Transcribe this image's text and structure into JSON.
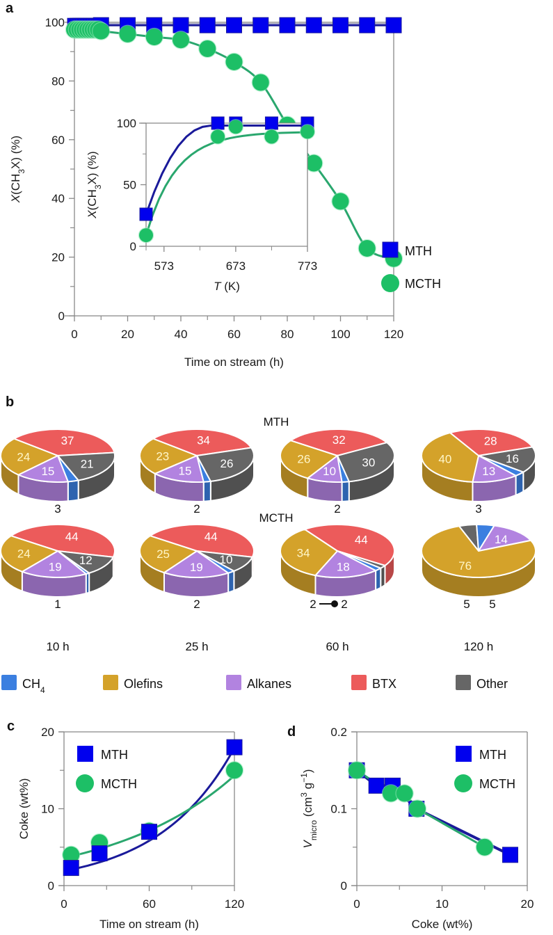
{
  "figure": {
    "panel_letters": [
      "a",
      "b",
      "c",
      "d"
    ]
  },
  "colors": {
    "MTH": "#0000ee",
    "MTH_line": "#1a1a9a",
    "MCTH": "#1dbf66",
    "MCTH_line": "#2aa76e",
    "CH4": "#3b7fe0",
    "Olefins": "#d4a22a",
    "Alkanes": "#b283e0",
    "BTX": "#ec5b5b",
    "Other": "#666666",
    "axis": "#888888"
  },
  "chart_data": [
    {
      "id": "a",
      "type": "scatter",
      "title": "",
      "xlabel": "Time on stream (h)",
      "ylabel": "X(CH3X) (%)",
      "ylabel_parts": {
        "italic": "X",
        "rest": "(CH",
        "sub": "3",
        "tail": "X) (%)"
      },
      "xlim": [
        0,
        120
      ],
      "ylim": [
        0,
        100
      ],
      "xticks": [
        0,
        20,
        40,
        60,
        80,
        100,
        120
      ],
      "yticks": [
        0,
        20,
        40,
        60,
        80,
        100
      ],
      "grid": false,
      "legend": {
        "position": "bottom-right",
        "entries": [
          "MTH",
          "MCTH"
        ]
      },
      "series": [
        {
          "name": "MTH",
          "marker": "square",
          "x": [
            0,
            1,
            2,
            3,
            4,
            5,
            6,
            7,
            8,
            9,
            10,
            20,
            30,
            40,
            50,
            60,
            70,
            80,
            90,
            100,
            110,
            120
          ],
          "y": [
            99,
            99,
            99,
            99,
            99,
            99,
            99,
            99,
            99,
            99,
            99,
            99,
            99,
            99,
            99,
            99,
            99,
            99,
            99,
            99,
            99,
            99
          ]
        },
        {
          "name": "MCTH",
          "marker": "circle",
          "x": [
            0,
            1,
            2,
            3,
            4,
            5,
            6,
            7,
            8,
            9,
            10,
            20,
            30,
            40,
            50,
            60,
            70,
            80,
            90,
            100,
            110,
            120
          ],
          "y": [
            97.5,
            97.5,
            97.5,
            97.5,
            97.5,
            97.5,
            97.5,
            97.5,
            97.5,
            97.5,
            97,
            96,
            95,
            94,
            91,
            86.5,
            79.5,
            65,
            52,
            39,
            23,
            19.5
          ]
        }
      ],
      "inset": {
        "type": "scatter",
        "xlabel": "T (K)",
        "ylabel": "X(CH3X) (%)",
        "xlim": [
          548,
          773
        ],
        "ylim": [
          0,
          100
        ],
        "xticks": [
          573,
          673,
          773
        ],
        "minor_xticks": [
          623,
          723
        ],
        "yticks": [
          0,
          50,
          100
        ],
        "series": [
          {
            "name": "MTH",
            "x": [
              548,
              648,
              673,
              723,
              773
            ],
            "y": [
              26,
              100,
              100,
              100,
              100
            ]
          },
          {
            "name": "MCTH",
            "x": [
              548,
              648,
              673,
              723,
              773
            ],
            "y": [
              9,
              89,
              97,
              89,
              93
            ]
          }
        ]
      }
    },
    {
      "id": "b",
      "type": "pie",
      "row_titles": [
        "MTH",
        "MCTH"
      ],
      "time_labels": [
        "10 h",
        "25 h",
        "60 h",
        "120 h"
      ],
      "categories": [
        "CH4",
        "Olefins",
        "Alkanes",
        "BTX",
        "Other"
      ],
      "legend": {
        "position": "bottom",
        "entries": [
          {
            "key": "CH4",
            "label": "CH",
            "sub": "4"
          },
          {
            "key": "Olefins",
            "label": "Olefins"
          },
          {
            "key": "Alkanes",
            "label": "Alkanes"
          },
          {
            "key": "BTX",
            "label": "BTX"
          },
          {
            "key": "Other",
            "label": "Other"
          }
        ]
      },
      "pies": [
        {
          "row": "MTH",
          "time": "10 h",
          "CH4": 3,
          "Olefins": 24,
          "Alkanes": 15,
          "BTX": 37,
          "Other": 21
        },
        {
          "row": "MTH",
          "time": "25 h",
          "CH4": 2,
          "Olefins": 23,
          "Alkanes": 15,
          "BTX": 34,
          "Other": 26
        },
        {
          "row": "MTH",
          "time": "60 h",
          "CH4": 2,
          "Olefins": 26,
          "Alkanes": 10,
          "BTX": 32,
          "Other": 30
        },
        {
          "row": "MTH",
          "time": "120 h",
          "CH4": 3,
          "Olefins": 40,
          "Alkanes": 13,
          "BTX": 28,
          "Other": 16
        },
        {
          "row": "MCTH",
          "time": "10 h",
          "CH4": 1,
          "Olefins": 24,
          "Alkanes": 19,
          "BTX": 44,
          "Other": 12
        },
        {
          "row": "MCTH",
          "time": "25 h",
          "CH4": 2,
          "Olefins": 25,
          "Alkanes": 19,
          "BTX": 44,
          "Other": 10
        },
        {
          "row": "MCTH",
          "time": "60 h",
          "CH4": 2,
          "Olefins": 34,
          "Alkanes": 18,
          "BTX": 44,
          "Other": 2
        },
        {
          "row": "MCTH",
          "time": "120 h",
          "CH4": 5,
          "Olefins": 76,
          "Alkanes": 14,
          "BTX": 0,
          "Other": 5
        }
      ],
      "outside_labels": [
        {
          "pie": 0,
          "text": "3"
        },
        {
          "pie": 1,
          "text": "2"
        },
        {
          "pie": 2,
          "text": "2"
        },
        {
          "pie": 3,
          "text": "3"
        },
        {
          "pie": 4,
          "text": "1"
        },
        {
          "pie": 5,
          "text": "2"
        },
        {
          "pie": 6,
          "text": "2",
          "text2": "2",
          "connector": true
        },
        {
          "pie": 7,
          "text": "5",
          "text2": "5"
        }
      ]
    },
    {
      "id": "c",
      "type": "scatter",
      "xlabel": "Time on stream (h)",
      "ylabel": "Coke (wt%)",
      "xlim": [
        0,
        120
      ],
      "ylim": [
        0,
        20
      ],
      "xticks": [
        0,
        60,
        120
      ],
      "minor_xticks": [
        30,
        90
      ],
      "yticks": [
        0,
        10,
        20
      ],
      "legend": {
        "position": "top-left",
        "entries": [
          "MTH",
          "MCTH"
        ]
      },
      "series": [
        {
          "name": "MTH",
          "marker": "square",
          "x": [
            5,
            25,
            60,
            120
          ],
          "y": [
            2.3,
            4.2,
            7.0,
            18.0
          ]
        },
        {
          "name": "MCTH",
          "marker": "circle",
          "x": [
            5,
            25,
            60,
            120
          ],
          "y": [
            4.0,
            5.6,
            7.1,
            15.0
          ]
        }
      ]
    },
    {
      "id": "d",
      "type": "scatter",
      "xlabel": "Coke (wt%)",
      "ylabel": "V_micro (cm3 g-1)",
      "ylabel_parts": {
        "italic": "V",
        "sub": "micro",
        "rest": " (cm",
        "sup": "3",
        "mid": " g",
        "sup2": "−1",
        "tail": ")"
      },
      "xlim": [
        0,
        20
      ],
      "ylim": [
        0,
        0.2
      ],
      "xticks": [
        0,
        10,
        20
      ],
      "minor_xticks": [
        5,
        15
      ],
      "yticks": [
        0,
        0.1,
        0.2
      ],
      "ytick_labels": [
        "0",
        "0.1",
        "0.2"
      ],
      "legend": {
        "position": "top-right",
        "entries": [
          "MTH",
          "MCTH"
        ]
      },
      "series": [
        {
          "name": "MTH",
          "marker": "square",
          "x": [
            0,
            2.3,
            4.2,
            7.0,
            18.0
          ],
          "y": [
            0.15,
            0.13,
            0.13,
            0.1,
            0.04
          ]
        },
        {
          "name": "MCTH",
          "marker": "circle",
          "x": [
            0,
            4.0,
            5.6,
            7.1,
            15.0
          ],
          "y": [
            0.15,
            0.12,
            0.12,
            0.1,
            0.05
          ]
        }
      ]
    }
  ]
}
